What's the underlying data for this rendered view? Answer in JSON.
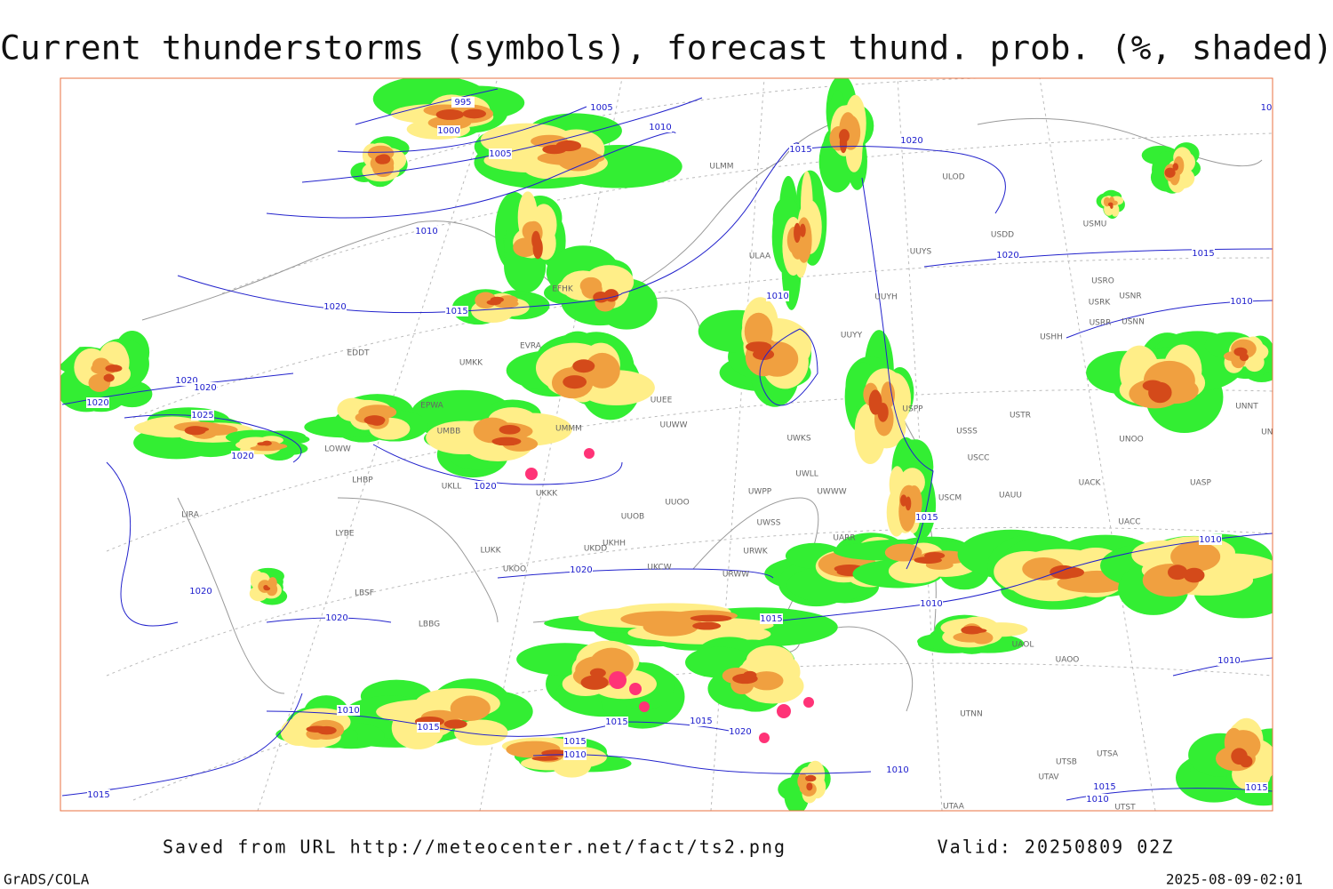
{
  "header": {
    "title": "Current thunderstorms (symbols), forecast thund. prob. (%, shaded)"
  },
  "footer": {
    "source": "Saved from URL http://meteocenter.net/fact/ts2.png",
    "valid": "Valid: 20250809 02Z",
    "software": "GrADS/COLA",
    "timestamp": "2025-08-09-02:01"
  },
  "isobar_labels": [
    "995",
    "1005",
    "1000",
    "1010",
    "1005",
    "1015",
    "1020",
    "1010",
    "1020",
    "1015",
    "1020",
    "1015",
    "1010",
    "1010",
    "1020",
    "1020",
    "1020",
    "1025",
    "1020",
    "1020",
    "1015",
    "1010",
    "1020",
    "1020",
    "1020",
    "1010",
    "1015",
    "1010",
    "1010",
    "1015",
    "1015",
    "1015",
    "1020",
    "1015",
    "1010",
    "1010",
    "1015",
    "1015",
    "1010",
    "1015",
    "10"
  ],
  "station_labels": [
    "ULMM",
    "ULOD",
    "USDD",
    "USMU",
    "UUYS",
    "ULAA",
    "USRO",
    "USRK",
    "USNR",
    "EFHK",
    "UUYH",
    "USRR",
    "USNN",
    "UUYY",
    "USHH",
    "EVRA",
    "EDDT",
    "UMKK",
    "EPWA",
    "UUEE",
    "UUWW",
    "USPP",
    "USTR",
    "USSS",
    "UMMM",
    "UWKS",
    "USCC",
    "UWLL",
    "UWWW",
    "UWPP",
    "UKKK",
    "USCM",
    "UAUU",
    "UACK",
    "UASP",
    "UUOO",
    "UUOB",
    "UWSS",
    "UACC",
    "LIRA",
    "LYBE",
    "LUKK",
    "UKDD",
    "UKHH",
    "UKOO",
    "UKCW",
    "URWW",
    "URWK",
    "UARR",
    "LBSF",
    "LBBG",
    "UAOL",
    "UAOO",
    "UTNN",
    "UTAA",
    "UTSB",
    "UTSA",
    "UTAV",
    "UTST",
    "UNNT",
    "UNBB",
    "UNOO",
    "LHBP",
    "LOWW",
    "UMBB",
    "UKLL"
  ]
}
